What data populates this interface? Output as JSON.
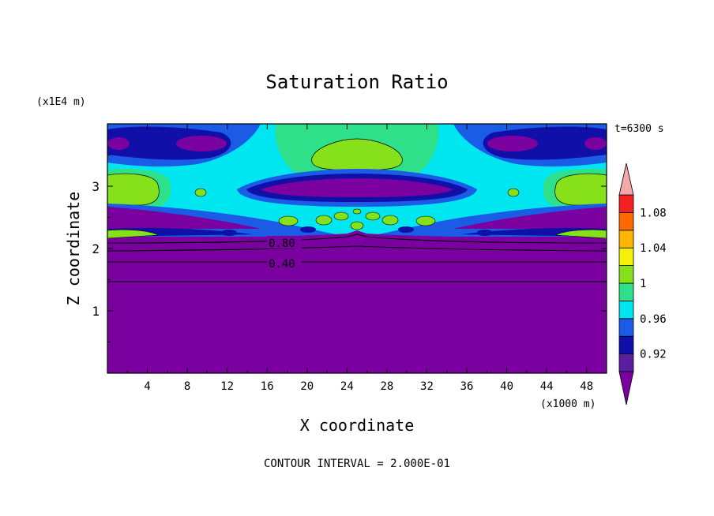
{
  "chart_data": {
    "type": "heatmap",
    "title": "Saturation Ratio",
    "xlabel": "X coordinate",
    "ylabel": "Z coordinate",
    "x_unit_label": "(x1000 m)",
    "y_unit_label": "(x1E4 m)",
    "time_label": "t=6300 s",
    "footer": "CONTOUR INTERVAL = 2.000E-01",
    "xlim": [
      0,
      50
    ],
    "ylim": [
      0,
      4
    ],
    "x_ticks": [
      "4",
      "8",
      "12",
      "16",
      "20",
      "24",
      "28",
      "32",
      "36",
      "40",
      "44",
      "48"
    ],
    "y_ticks": [
      "1",
      "2",
      "3"
    ],
    "contour_labels": [
      "0.80",
      "0.40"
    ],
    "colorbar": {
      "levels": [
        0.9,
        0.92,
        0.94,
        0.96,
        0.98,
        1.0,
        1.02,
        1.04,
        1.06,
        1.08,
        1.1
      ],
      "tick_labels": [
        "0.92",
        "0.96",
        "1",
        "1.04",
        "1.08"
      ],
      "colors": [
        "#5a1e9e",
        "#1010a8",
        "#1a5ce6",
        "#00e6f0",
        "#2ee08a",
        "#86e01a",
        "#f5f20a",
        "#ffb400",
        "#ff6a00",
        "#f22222"
      ],
      "under_color": "#7a00a0",
      "over_color": "#f4a8a8"
    }
  }
}
